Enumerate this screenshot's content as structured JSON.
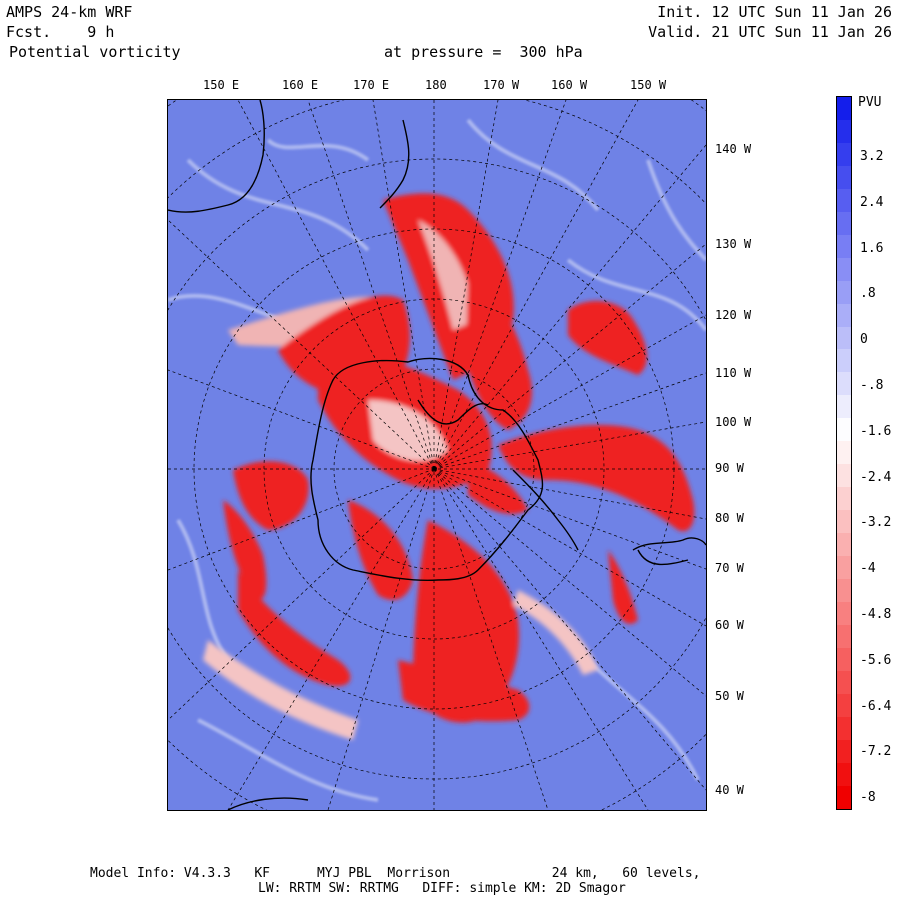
{
  "header": {
    "model": "AMPS 24-km WRF",
    "forecast": "Fcst.    9 h",
    "variable": "Potential vorticity",
    "level": "at pressure =  300 hPa",
    "init": "Init. 12 UTC Sun 11 Jan 26",
    "valid": "Valid. 21 UTC Sun 11 Jan 26"
  },
  "map": {
    "top_longitudes": [
      "150 E",
      "160 E",
      "170 E",
      "180",
      "170 W",
      "160 W",
      "150 W"
    ],
    "right_longitudes": [
      "140 W",
      "130 W",
      "120 W",
      "110 W",
      "100 W",
      "90 W",
      "80 W",
      "70 W",
      "60 W",
      "50 W",
      "40 W"
    ],
    "colors": {
      "background_blue": "#6f82e6",
      "pv_negative_red": "#ee1c1c",
      "coast": "#000000"
    }
  },
  "colorbar": {
    "unit": "PVU",
    "labels": [
      "3.2",
      "2.4",
      "1.6",
      ".8",
      "0",
      "-.8",
      "-1.6",
      "-2.4",
      "-3.2",
      "-4",
      "-4.8",
      "-5.6",
      "-6.4",
      "-7.2",
      "-8"
    ],
    "range": [
      -8,
      4
    ]
  },
  "footer": {
    "line1": "Model Info: V4.3.3   KF      MYJ PBL  Morrison             24 km,   60 levels,",
    "line2": "LW: RRTM SW: RRTMG   DIFF: simple KM: 2D Smagor"
  }
}
